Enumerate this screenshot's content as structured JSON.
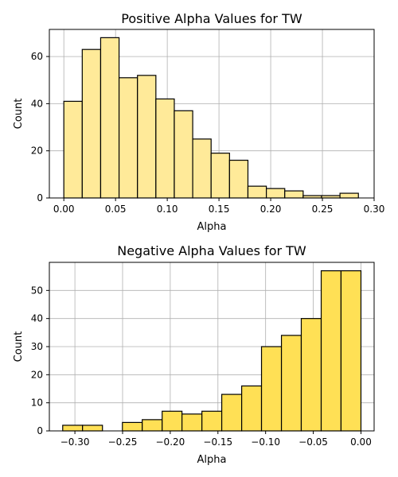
{
  "chart_data": [
    {
      "type": "bar",
      "title": "Positive Alpha Values for TW",
      "xlabel": "Alpha",
      "ylabel": "Count",
      "color": "#ffea99",
      "edgecolor": "#000000",
      "grid": true,
      "xlim": [
        -0.014,
        0.3
      ],
      "ylim": [
        0,
        71.5
      ],
      "xticks": [
        0.0,
        0.05,
        0.1,
        0.15,
        0.2,
        0.25,
        0.3
      ],
      "xtick_labels": [
        "0.00",
        "0.05",
        "0.10",
        "0.15",
        "0.20",
        "0.25",
        "0.30"
      ],
      "yticks": [
        0,
        20,
        40,
        60
      ],
      "ytick_labels": [
        "0",
        "20",
        "40",
        "60"
      ],
      "bins": [
        {
          "start": 0.0,
          "end": 0.0178,
          "count": 41
        },
        {
          "start": 0.0178,
          "end": 0.0356,
          "count": 63
        },
        {
          "start": 0.0356,
          "end": 0.0534,
          "count": 68
        },
        {
          "start": 0.0534,
          "end": 0.0712,
          "count": 51
        },
        {
          "start": 0.0712,
          "end": 0.089,
          "count": 52
        },
        {
          "start": 0.089,
          "end": 0.1068,
          "count": 42
        },
        {
          "start": 0.1068,
          "end": 0.1246,
          "count": 37
        },
        {
          "start": 0.1246,
          "end": 0.1424,
          "count": 25
        },
        {
          "start": 0.1424,
          "end": 0.1602,
          "count": 19
        },
        {
          "start": 0.1602,
          "end": 0.178,
          "count": 16
        },
        {
          "start": 0.178,
          "end": 0.1958,
          "count": 5
        },
        {
          "start": 0.1958,
          "end": 0.2136,
          "count": 4
        },
        {
          "start": 0.2136,
          "end": 0.2314,
          "count": 3
        },
        {
          "start": 0.2314,
          "end": 0.2492,
          "count": 1
        },
        {
          "start": 0.2492,
          "end": 0.267,
          "count": 1
        },
        {
          "start": 0.267,
          "end": 0.2848,
          "count": 2
        }
      ]
    },
    {
      "type": "bar",
      "title": "Negative Alpha Values for TW",
      "xlabel": "Alpha",
      "ylabel": "Count",
      "color": "#ffe055",
      "edgecolor": "#000000",
      "grid": true,
      "xlim": [
        -0.3268,
        0.0138
      ],
      "ylim": [
        0,
        60
      ],
      "xticks": [
        -0.3,
        -0.25,
        -0.2,
        -0.15,
        -0.1,
        -0.05,
        0.0
      ],
      "xtick_labels": [
        "−0.30",
        "−0.25",
        "−0.20",
        "−0.15",
        "−0.10",
        "−0.05",
        "0.00"
      ],
      "yticks": [
        0,
        10,
        20,
        30,
        40,
        50
      ],
      "ytick_labels": [
        "0",
        "10",
        "20",
        "30",
        "40",
        "50"
      ],
      "bins": [
        {
          "start": -0.3128,
          "end": -0.292,
          "count": 2
        },
        {
          "start": -0.292,
          "end": -0.2711,
          "count": 2
        },
        {
          "start": -0.2711,
          "end": -0.2502,
          "count": 0
        },
        {
          "start": -0.2502,
          "end": -0.2294,
          "count": 3
        },
        {
          "start": -0.2294,
          "end": -0.2085,
          "count": 4
        },
        {
          "start": -0.2085,
          "end": -0.1877,
          "count": 7
        },
        {
          "start": -0.1877,
          "end": -0.1668,
          "count": 6
        },
        {
          "start": -0.1668,
          "end": -0.146,
          "count": 7
        },
        {
          "start": -0.146,
          "end": -0.1251,
          "count": 13
        },
        {
          "start": -0.1251,
          "end": -0.1043,
          "count": 16
        },
        {
          "start": -0.1043,
          "end": -0.0834,
          "count": 30
        },
        {
          "start": -0.0834,
          "end": -0.0626,
          "count": 34
        },
        {
          "start": -0.0626,
          "end": -0.0417,
          "count": 40
        },
        {
          "start": -0.0417,
          "end": -0.0209,
          "count": 57
        },
        {
          "start": -0.0209,
          "end": 0.0,
          "count": 57
        }
      ]
    }
  ]
}
